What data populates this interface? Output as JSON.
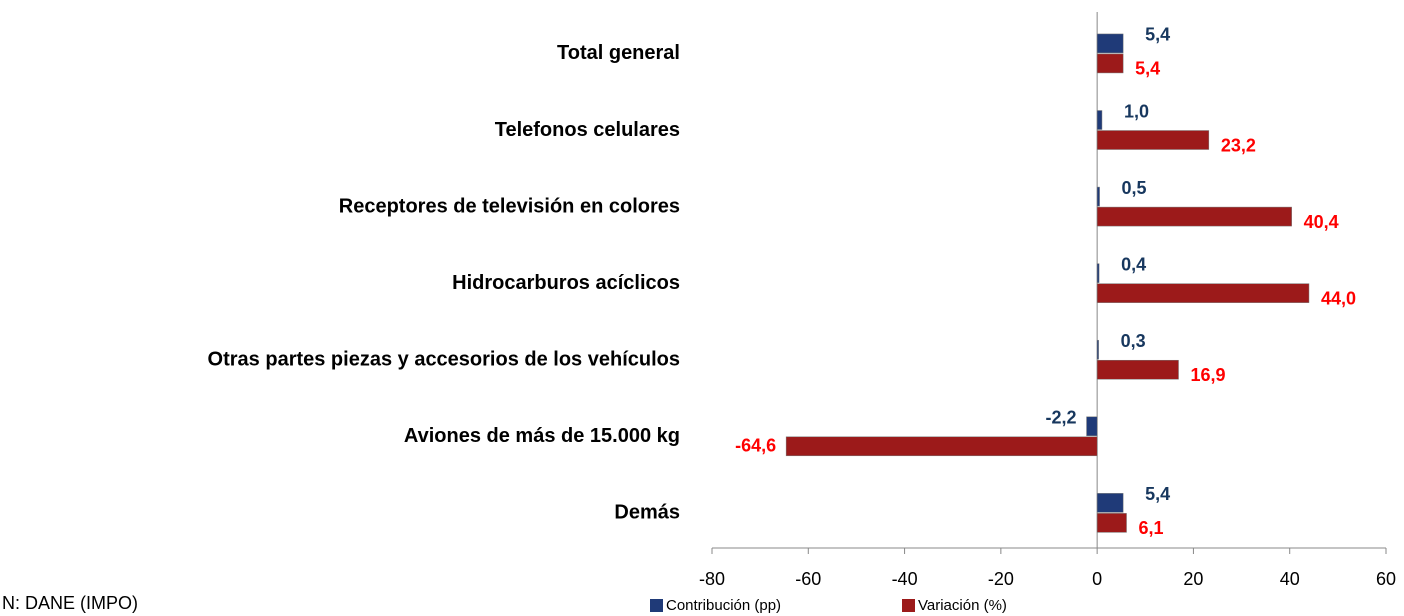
{
  "chart_data": {
    "type": "hbar",
    "categories": [
      "Total general",
      "Telefonos celulares",
      "Receptores de televisión en colores",
      "Hidrocarburos acíclicos",
      "Otras partes piezas y accesorios de los vehículos",
      "Aviones de más de 15.000 kg",
      "Demás"
    ],
    "series": [
      {
        "name": "Contribución (pp)",
        "color": "#1f3a78",
        "label_color": "#17375e",
        "values": [
          5.4,
          1.0,
          0.5,
          0.4,
          0.3,
          -2.2,
          5.4
        ],
        "value_labels": [
          "5,4",
          "1,0",
          "0,5",
          "0,4",
          "0,3",
          "-2,2",
          "5,4"
        ]
      },
      {
        "name": "Variación (%)",
        "color": "#9c1a1a",
        "label_color": "#ff0000",
        "values": [
          5.4,
          23.2,
          40.4,
          44.0,
          16.9,
          -64.6,
          6.1
        ],
        "value_labels": [
          "5,4",
          "23,2",
          "40,4",
          "44,0",
          "16,9",
          "-64,6",
          "6,1"
        ]
      }
    ],
    "xlim": [
      -80,
      60
    ],
    "xticks": [
      -80,
      -60,
      -40,
      -20,
      0,
      20,
      40,
      60
    ],
    "legend": "bottom",
    "note": "N: DANE (IMPO)"
  }
}
